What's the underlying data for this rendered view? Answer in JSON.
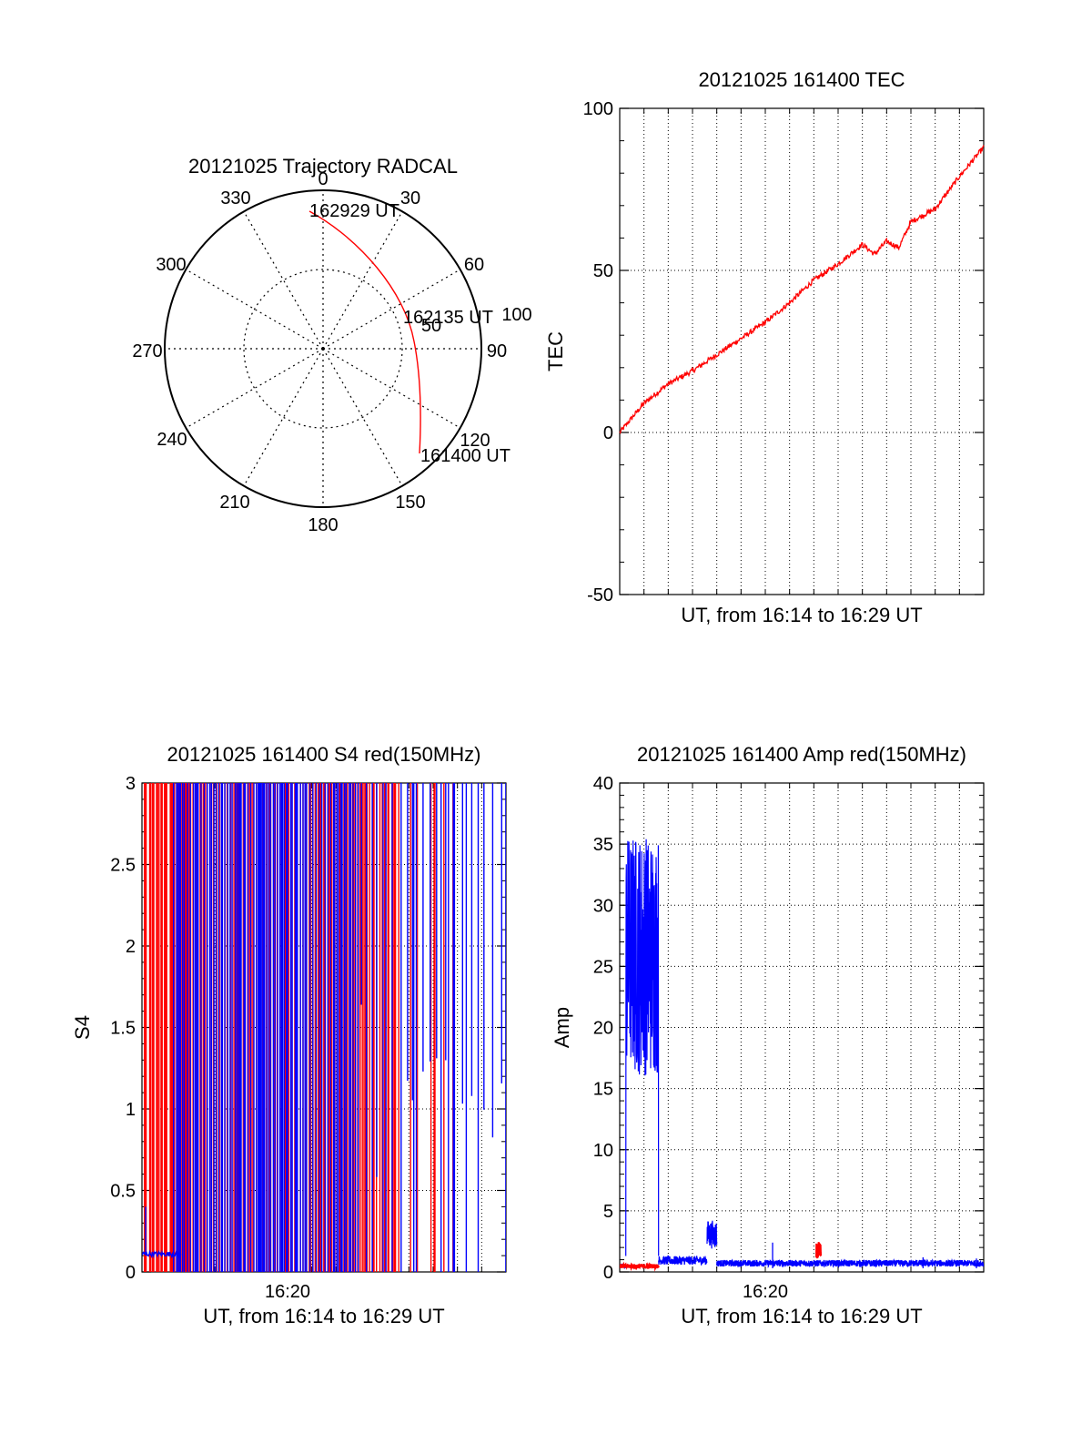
{
  "chart_data": [
    {
      "id": "polar",
      "type": "scatter",
      "title": "20121025 Trajectory RADCAL",
      "azimuth_labels": [
        "0",
        "30",
        "60",
        "90",
        "120",
        "150",
        "180",
        "210",
        "240",
        "270",
        "300",
        "330"
      ],
      "zenith_ring_labels": [
        "50",
        "100"
      ],
      "time_labels": [
        "162929 UT",
        "162135 UT",
        "161400 UT"
      ],
      "trajectory": [
        {
          "az": 0,
          "zen": 88
        },
        {
          "az": 8,
          "zen": 84
        },
        {
          "az": 18,
          "zen": 78
        },
        {
          "az": 30,
          "zen": 72
        },
        {
          "az": 44,
          "zen": 70
        },
        {
          "az": 60,
          "zen": 70
        },
        {
          "az": 75,
          "zen": 72
        },
        {
          "az": 90,
          "zen": 76
        },
        {
          "az": 104,
          "zen": 82
        },
        {
          "az": 113,
          "zen": 90
        },
        {
          "az": 119,
          "zen": 95
        }
      ],
      "line_color": "#ff0000"
    },
    {
      "id": "tec",
      "type": "line",
      "title": "20121025 161400 TEC",
      "xlabel": "UT, from 16:14 to 16:29 UT",
      "ylabel": "TEC",
      "ylim": [
        -50,
        100
      ],
      "yticks": [
        "100",
        "50",
        "0",
        "-50"
      ],
      "x_minutes": [
        0,
        1,
        2,
        3,
        4,
        5,
        6,
        7,
        8,
        9,
        10,
        10.5,
        11,
        11.5,
        12,
        13,
        14,
        15
      ],
      "values": [
        0,
        9,
        15,
        19,
        24,
        29,
        34,
        40,
        47,
        52,
        58,
        55,
        59,
        57,
        65,
        69,
        79,
        88
      ],
      "line_color": "#ff0000"
    },
    {
      "id": "s4",
      "type": "line",
      "title": "20121025 161400 S4 red(150MHz)",
      "xlabel": "UT, from 16:14 to 16:29 UT",
      "ylabel": "S4",
      "ylim": [
        0,
        3
      ],
      "yticks": [
        "3",
        "2.5",
        "2",
        "1.5",
        "1",
        "0.5",
        "0"
      ],
      "xticks": [
        {
          "minute": 6,
          "label": "16:20"
        }
      ],
      "series": [
        {
          "color": "#ff0000"
        },
        {
          "color": "#0000ff"
        }
      ]
    },
    {
      "id": "amp",
      "type": "line",
      "title": "20121025 161400 Amp red(150MHz)",
      "xlabel": "UT, from 16:14 to 16:29 UT",
      "ylabel": "Amp",
      "ylim": [
        0,
        40
      ],
      "yticks": [
        "40",
        "35",
        "30",
        "25",
        "20",
        "15",
        "10",
        "5",
        "0"
      ],
      "xticks": [
        {
          "minute": 6,
          "label": "16:20"
        }
      ],
      "series": [
        {
          "color": "#0000ff",
          "segments": [
            {
              "from": 0,
              "to": 0.25,
              "level": 0.4
            },
            {
              "from": 0.25,
              "to": 1.6,
              "level": 26,
              "spread": 10
            },
            {
              "from": 1.6,
              "to": 3.6,
              "level": 0.8
            },
            {
              "from": 3.6,
              "to": 4.0,
              "level": 2.6
            },
            {
              "from": 4.0,
              "to": 15,
              "level": 0.6
            }
          ]
        },
        {
          "color": "#ff0000",
          "segments": [
            {
              "from": 0,
              "to": 1.6,
              "level": 0.4
            },
            {
              "from": 8.1,
              "to": 8.3,
              "level": 1.5
            }
          ]
        }
      ]
    }
  ]
}
